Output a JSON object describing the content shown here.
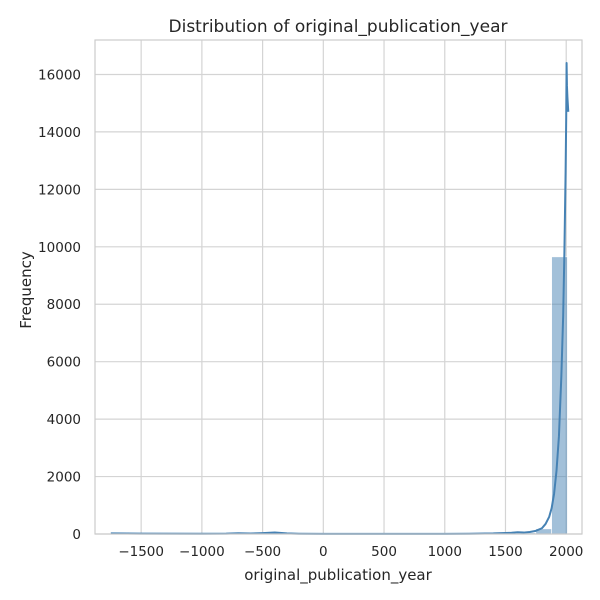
{
  "chart_data": {
    "type": "bar",
    "title": "Distribution of original_publication_year",
    "xlabel": "original_publication_year",
    "ylabel": "Frequency",
    "xlim": [
      -1880,
      2130
    ],
    "ylim": [
      0,
      17200
    ],
    "xticks": [
      -1500,
      -1000,
      -500,
      0,
      500,
      1000,
      1500,
      2000
    ],
    "xtick_labels": [
      "−1500",
      "−1000",
      "−500",
      "0",
      "500",
      "1000",
      "1500",
      "2000"
    ],
    "yticks": [
      0,
      2000,
      4000,
      6000,
      8000,
      10000,
      12000,
      14000,
      16000
    ],
    "ytick_labels": [
      "0",
      "2000",
      "4000",
      "6000",
      "8000",
      "10000",
      "12000",
      "14000",
      "16000"
    ],
    "grid": true,
    "bar_color": "#4682b4",
    "bins": [
      {
        "start": -1750,
        "end": -1620,
        "count": 3
      },
      {
        "start": -760,
        "end": -630,
        "count": 5
      },
      {
        "start": -500,
        "end": -370,
        "count": 12
      },
      {
        "start": 1360,
        "end": 1490,
        "count": 8
      },
      {
        "start": 1490,
        "end": 1620,
        "count": 15
      },
      {
        "start": 1620,
        "end": 1750,
        "count": 40
      },
      {
        "start": 1750,
        "end": 1880,
        "count": 180
      },
      {
        "start": 1880,
        "end": 2010,
        "count": 9650
      }
    ],
    "kde": {
      "color": "#4682b4",
      "x": [
        -1750,
        -1500,
        -1000,
        -800,
        -700,
        -600,
        -500,
        -400,
        -300,
        -200,
        0,
        500,
        1000,
        1200,
        1400,
        1500,
        1550,
        1600,
        1650,
        1700,
        1750,
        1800,
        1830,
        1860,
        1880,
        1900,
        1920,
        1940,
        1960,
        1975,
        1985,
        1995,
        2000,
        2003,
        2006,
        2010,
        2017
      ],
      "y": [
        20,
        15,
        10,
        12,
        25,
        18,
        30,
        50,
        22,
        10,
        5,
        5,
        6,
        10,
        20,
        35,
        45,
        60,
        50,
        70,
        110,
        200,
        350,
        600,
        900,
        1400,
        2200,
        3400,
        5500,
        7600,
        9800,
        12600,
        14500,
        16400,
        15600,
        15200,
        14700
      ]
    }
  }
}
